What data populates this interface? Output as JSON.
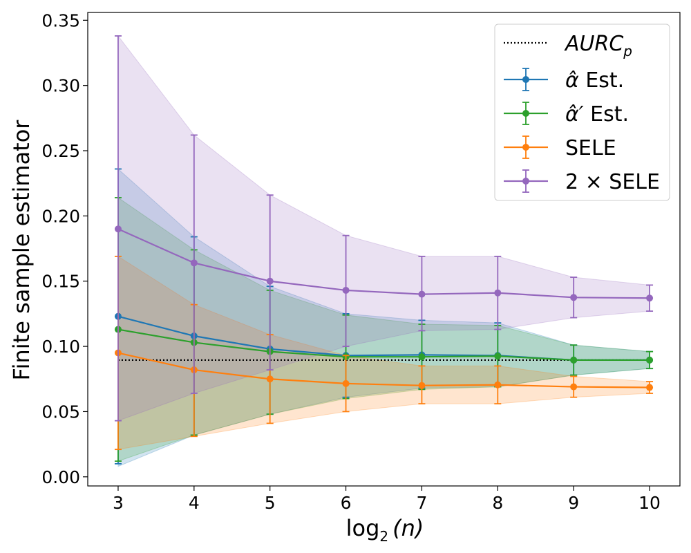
{
  "chart_data": {
    "type": "line",
    "xlabel": "log2(n)",
    "xlabel_parts": {
      "base": "log",
      "sub": "2",
      "arg": "(n)"
    },
    "ylabel": "Finite sample estimator",
    "xlim": [
      2.6,
      10.4
    ],
    "ylim": [
      -0.007,
      0.356
    ],
    "x": [
      3,
      4,
      5,
      6,
      7,
      8,
      9,
      10
    ],
    "x_tick_labels": [
      "3",
      "4",
      "5",
      "6",
      "7",
      "8",
      "9",
      "10"
    ],
    "y_ticks": [
      0.0,
      0.05,
      0.1,
      0.15,
      0.2,
      0.25,
      0.3,
      0.35
    ],
    "y_tick_labels": [
      "0.00",
      "0.05",
      "0.10",
      "0.15",
      "0.20",
      "0.25",
      "0.30",
      "0.35"
    ],
    "legend_position": "top-right",
    "reference_line": {
      "name": "AURC_p",
      "label_main": "AURC",
      "label_sub": "p",
      "value": 0.0895,
      "color": "#000000",
      "style": "dotted"
    },
    "series": [
      {
        "name": "α̂ Est.",
        "label_main": "α̂",
        "label_rest": " Est.",
        "color": "#1f77b4",
        "values": [
          0.123,
          0.108,
          0.098,
          0.093,
          0.0935,
          0.093,
          0.0895,
          0.0895
        ],
        "err_low": [
          0.01,
          0.032,
          0.048,
          0.061,
          0.068,
          0.069,
          0.078,
          0.083
        ],
        "err_high": [
          0.236,
          0.184,
          0.146,
          0.125,
          0.12,
          0.118,
          0.101,
          0.096
        ],
        "band_low": [
          0.008,
          0.032,
          0.048,
          0.061,
          0.068,
          0.069,
          0.078,
          0.083
        ],
        "band_high": [
          0.236,
          0.184,
          0.146,
          0.125,
          0.12,
          0.118,
          0.101,
          0.096
        ]
      },
      {
        "name": "α̂′ Est.",
        "label_main": "α̂′",
        "label_rest": " Est.",
        "color": "#2ca02c",
        "values": [
          0.113,
          0.103,
          0.096,
          0.092,
          0.092,
          0.0925,
          0.0895,
          0.0895
        ],
        "err_low": [
          0.012,
          0.032,
          0.048,
          0.06,
          0.067,
          0.069,
          0.078,
          0.083
        ],
        "err_high": [
          0.214,
          0.174,
          0.143,
          0.124,
          0.117,
          0.116,
          0.101,
          0.096
        ],
        "band_low": [
          0.012,
          0.032,
          0.048,
          0.06,
          0.067,
          0.069,
          0.078,
          0.083
        ],
        "band_high": [
          0.214,
          0.174,
          0.143,
          0.124,
          0.117,
          0.116,
          0.101,
          0.096
        ]
      },
      {
        "name": "SELE",
        "label_main": "SELE",
        "label_rest": "",
        "color": "#ff7f0e",
        "values": [
          0.095,
          0.082,
          0.075,
          0.0715,
          0.07,
          0.0705,
          0.069,
          0.0685
        ],
        "err_low": [
          0.021,
          0.031,
          0.041,
          0.05,
          0.056,
          0.056,
          0.061,
          0.064
        ],
        "err_high": [
          0.169,
          0.132,
          0.109,
          0.093,
          0.085,
          0.085,
          0.077,
          0.073
        ],
        "band_low": [
          0.021,
          0.031,
          0.041,
          0.05,
          0.056,
          0.056,
          0.061,
          0.064
        ],
        "band_high": [
          0.169,
          0.132,
          0.109,
          0.093,
          0.085,
          0.085,
          0.077,
          0.073
        ]
      },
      {
        "name": "2 × SELE",
        "label_main": "2 × SELE",
        "label_rest": "",
        "color": "#9467bd",
        "values": [
          0.19,
          0.164,
          0.15,
          0.143,
          0.14,
          0.141,
          0.1375,
          0.137
        ],
        "err_low": [
          0.043,
          0.064,
          0.082,
          0.1,
          0.112,
          0.113,
          0.122,
          0.127
        ],
        "err_high": [
          0.338,
          0.262,
          0.216,
          0.185,
          0.169,
          0.169,
          0.153,
          0.147
        ],
        "band_low": [
          0.043,
          0.064,
          0.082,
          0.1,
          0.112,
          0.113,
          0.122,
          0.127
        ],
        "band_high": [
          0.338,
          0.262,
          0.216,
          0.185,
          0.169,
          0.169,
          0.153,
          0.147
        ]
      }
    ]
  }
}
